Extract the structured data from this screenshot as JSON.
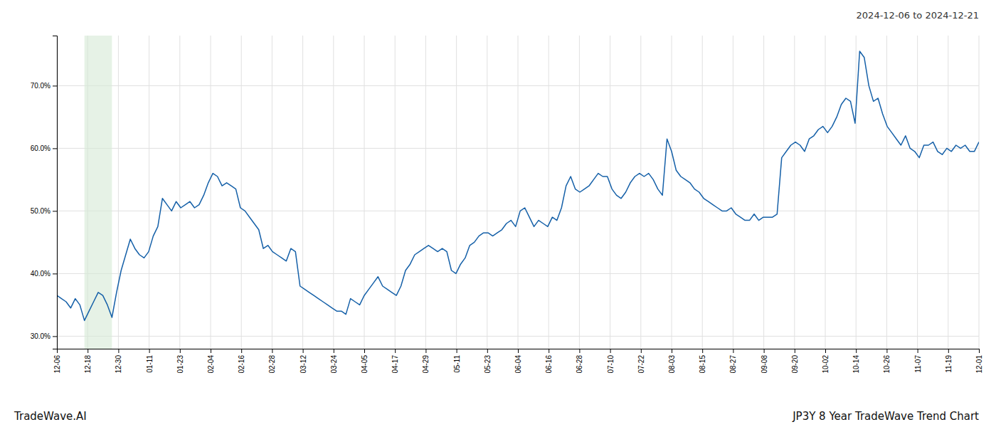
{
  "chart_data": {
    "type": "line",
    "title": "2024-12-06 to 2024-12-21",
    "annotations": [
      "TradeWave.AI",
      "JP3Y 8 Year TradeWave Trend Chart"
    ],
    "color": "#1560a8",
    "grid": true,
    "span_x": [
      6,
      12
    ],
    "span_color": "#d6ead6",
    "xlim": [
      0,
      201
    ],
    "xticks": [
      {
        "value": 0,
        "label": "12-06"
      },
      {
        "value": 6.7,
        "label": "12-18"
      },
      {
        "value": 13.4,
        "label": "12-30"
      },
      {
        "value": 20.1,
        "label": "01-11"
      },
      {
        "value": 26.8,
        "label": "01-23"
      },
      {
        "value": 33.5,
        "label": "02-04"
      },
      {
        "value": 40.2,
        "label": "02-16"
      },
      {
        "value": 46.9,
        "label": "02-28"
      },
      {
        "value": 53.6,
        "label": "03-12"
      },
      {
        "value": 60.3,
        "label": "03-24"
      },
      {
        "value": 67,
        "label": "04-05"
      },
      {
        "value": 73.7,
        "label": "04-17"
      },
      {
        "value": 80.4,
        "label": "04-29"
      },
      {
        "value": 87.1,
        "label": "05-11"
      },
      {
        "value": 93.8,
        "label": "05-23"
      },
      {
        "value": 100.5,
        "label": "06-04"
      },
      {
        "value": 107.2,
        "label": "06-16"
      },
      {
        "value": 113.9,
        "label": "06-28"
      },
      {
        "value": 120.6,
        "label": "07-10"
      },
      {
        "value": 127.3,
        "label": "07-22"
      },
      {
        "value": 134,
        "label": "08-03"
      },
      {
        "value": 140.7,
        "label": "08-15"
      },
      {
        "value": 147.4,
        "label": "08-27"
      },
      {
        "value": 154.1,
        "label": "09-08"
      },
      {
        "value": 160.8,
        "label": "09-20"
      },
      {
        "value": 167.5,
        "label": "10-02"
      },
      {
        "value": 174.2,
        "label": "10-14"
      },
      {
        "value": 180.9,
        "label": "10-26"
      },
      {
        "value": 187.6,
        "label": "11-07"
      },
      {
        "value": 194.3,
        "label": "11-19"
      },
      {
        "value": 201,
        "label": "12-01"
      }
    ],
    "ylim": [
      28.0,
      78.0
    ],
    "yticks": [
      {
        "value": 30.0,
        "label": "30.0%"
      },
      {
        "value": 40.0,
        "label": "40.0%"
      },
      {
        "value": 50.0,
        "label": "50.0%"
      },
      {
        "value": 60.0,
        "label": "60.0%"
      },
      {
        "value": 70.0,
        "label": "70.0%"
      }
    ],
    "x": [
      0,
      1,
      2,
      3,
      4,
      5,
      6,
      7,
      8,
      9,
      10,
      11,
      12,
      13,
      14,
      15,
      16,
      17,
      18,
      19,
      20,
      21,
      22,
      23,
      24,
      25,
      26,
      27,
      28,
      29,
      30,
      31,
      32,
      33,
      34,
      35,
      36,
      37,
      38,
      39,
      40,
      41,
      42,
      43,
      44,
      45,
      46,
      47,
      48,
      49,
      50,
      51,
      52,
      53,
      54,
      55,
      56,
      57,
      58,
      59,
      60,
      61,
      62,
      63,
      64,
      65,
      66,
      67,
      68,
      69,
      70,
      71,
      72,
      73,
      74,
      75,
      76,
      77,
      78,
      79,
      80,
      81,
      82,
      83,
      84,
      85,
      86,
      87,
      88,
      89,
      90,
      91,
      92,
      93,
      94,
      95,
      96,
      97,
      98,
      99,
      100,
      101,
      102,
      103,
      104,
      105,
      106,
      107,
      108,
      109,
      110,
      111,
      112,
      113,
      114,
      115,
      116,
      117,
      118,
      119,
      120,
      121,
      122,
      123,
      124,
      125,
      126,
      127,
      128,
      129,
      130,
      131,
      132,
      133,
      134,
      135,
      136,
      137,
      138,
      139,
      140,
      141,
      142,
      143,
      144,
      145,
      146,
      147,
      148,
      149,
      150,
      151,
      152,
      153,
      154,
      155,
      156,
      157,
      158,
      159,
      160,
      161,
      162,
      163,
      164,
      165,
      166,
      167,
      168,
      169,
      170,
      171,
      172,
      173,
      174,
      175,
      176,
      177,
      178,
      179,
      180,
      181,
      182,
      183,
      184,
      185,
      186,
      187,
      188,
      189,
      190,
      191,
      192,
      193,
      194,
      195,
      196,
      197,
      198,
      199,
      200,
      201
    ],
    "values": [
      36.5,
      36.0,
      35.5,
      34.5,
      36.0,
      35.0,
      32.5,
      34.0,
      35.5,
      37.0,
      36.5,
      35.0,
      33.0,
      37.0,
      40.5,
      43.0,
      45.5,
      44.0,
      43.0,
      42.5,
      43.5,
      46.0,
      47.5,
      52.0,
      51.0,
      50.0,
      51.5,
      50.5,
      51.0,
      51.5,
      50.5,
      51.0,
      52.5,
      54.5,
      56.0,
      55.5,
      54.0,
      54.5,
      54.0,
      53.5,
      50.5,
      50.0,
      49.0,
      48.0,
      47.0,
      44.0,
      44.5,
      43.5,
      43.0,
      42.5,
      42.0,
      44.0,
      43.5,
      38.0,
      37.5,
      37.0,
      36.5,
      36.0,
      35.5,
      35.0,
      34.5,
      34.0,
      34.0,
      33.5,
      36.0,
      35.5,
      35.0,
      36.5,
      37.5,
      38.5,
      39.5,
      38.0,
      37.5,
      37.0,
      36.5,
      38.0,
      40.5,
      41.5,
      43.0,
      43.5,
      44.0,
      44.5,
      44.0,
      43.5,
      44.0,
      43.5,
      40.5,
      40.0,
      41.5,
      42.5,
      44.5,
      45.0,
      46.0,
      46.5,
      46.5,
      46.0,
      46.5,
      47.0,
      48.0,
      48.5,
      47.5,
      50.0,
      50.5,
      49.0,
      47.5,
      48.5,
      48.0,
      47.5,
      49.0,
      48.5,
      50.5,
      54.0,
      55.5,
      53.5,
      53.0,
      53.5,
      54.0,
      55.0,
      56.0,
      55.5,
      55.5,
      53.5,
      52.5,
      52.0,
      53.0,
      54.5,
      55.5,
      56.0,
      55.5,
      56.0,
      55.0,
      53.5,
      52.5,
      61.5,
      59.5,
      56.5,
      55.5,
      55.0,
      54.5,
      53.5,
      53.0,
      52.0,
      51.5,
      51.0,
      50.5,
      50.0,
      50.0,
      50.5,
      49.5,
      49.0,
      48.5,
      48.5,
      49.5,
      48.5,
      49.0,
      49.0,
      49.0,
      49.5,
      58.5,
      59.5,
      60.5,
      61.0,
      60.5,
      59.5,
      61.5,
      62.0,
      63.0,
      63.5,
      62.5,
      63.5,
      65.0,
      67.0,
      68.0,
      67.5,
      64.0,
      75.5,
      74.5,
      70.0,
      67.5,
      68.0,
      65.5,
      63.5,
      62.5,
      61.5,
      60.5,
      62.0,
      60.0,
      59.5,
      58.5,
      60.5,
      60.5,
      61.0,
      59.5,
      59.0,
      60.0,
      59.5,
      60.5,
      60.0,
      60.5,
      59.5,
      59.5,
      61.0
    ]
  }
}
